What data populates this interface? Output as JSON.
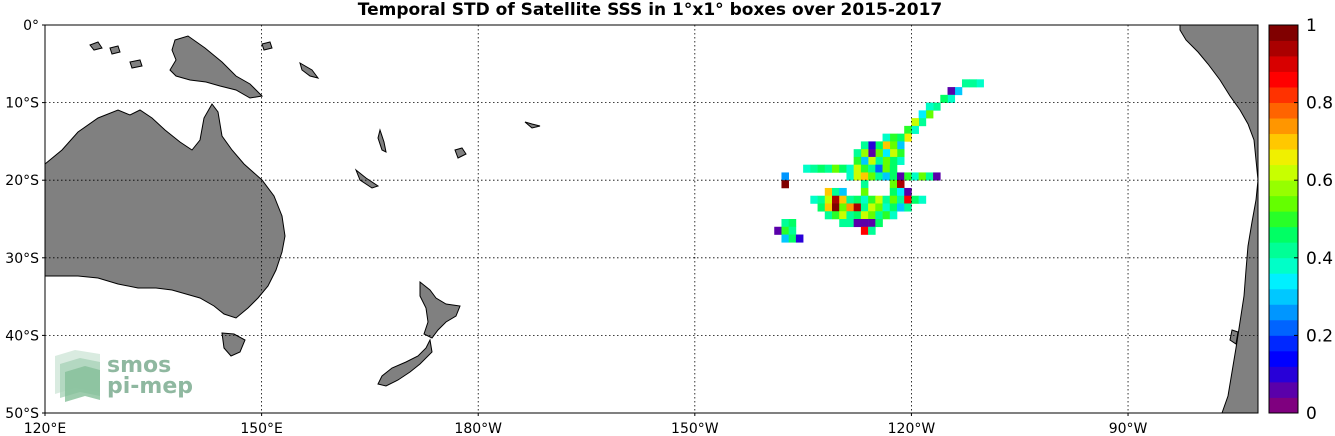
{
  "map": {
    "title": "Temporal STD of Satellite SSS in 1°x1° boxes over 2015-2017",
    "longitude_ticks": [
      {
        "lon": 120,
        "label": "120°E"
      },
      {
        "lon": 150,
        "label": "150°E"
      },
      {
        "lon": 180,
        "label": "180°W"
      },
      {
        "lon": 210,
        "label": "150°W"
      },
      {
        "lon": 240,
        "label": "120°W"
      },
      {
        "lon": 270,
        "label": "90°W"
      }
    ],
    "latitude_ticks": [
      {
        "lat": 0,
        "label": "0°"
      },
      {
        "lat": -10,
        "label": "10°S"
      },
      {
        "lat": -20,
        "label": "20°S"
      },
      {
        "lat": -30,
        "label": "30°S"
      },
      {
        "lat": -40,
        "label": "40°S"
      },
      {
        "lat": -50,
        "label": "50°S"
      }
    ],
    "extent": {
      "lon_min": 120,
      "lon_max": 288,
      "lat_min": -50,
      "lat_max": 0
    },
    "grid": true,
    "land_color": "#808080",
    "ocean_color": "#ffffff"
  },
  "colorbar": {
    "min": 0,
    "max": 1,
    "ticks": [
      {
        "value": 0,
        "label": "0"
      },
      {
        "value": 0.2,
        "label": "0.2"
      },
      {
        "value": 0.4,
        "label": "0.4"
      },
      {
        "value": 0.6,
        "label": "0.6"
      },
      {
        "value": 0.8,
        "label": "0.8"
      },
      {
        "value": 1,
        "label": "1"
      }
    ],
    "colors": [
      "#7f007f",
      "#5a00aa",
      "#2800d8",
      "#0000ff",
      "#0028ff",
      "#0064ff",
      "#0096ff",
      "#00c8ff",
      "#00f0ff",
      "#00ffc8",
      "#00ff96",
      "#00ff64",
      "#28ff28",
      "#64ff00",
      "#96ff00",
      "#c8ff00",
      "#f0f000",
      "#ffc800",
      "#ff9600",
      "#ff6400",
      "#ff3200",
      "#ff0000",
      "#d80000",
      "#aa0000",
      "#800000"
    ]
  },
  "logo": {
    "line1": "smos",
    "line2": "pi-mep"
  },
  "chart_data": {
    "type": "heatmap",
    "title": "Temporal STD of Satellite SSS in 1°x1° boxes over 2015-2017",
    "units": "",
    "cell_size_deg": 1,
    "cells": [
      {
        "lon": 249.5,
        "lat": -7.5,
        "v": 0.38
      },
      {
        "lon": 248.5,
        "lat": -7.5,
        "v": 0.42
      },
      {
        "lon": 247.5,
        "lat": -7.5,
        "v": 0.4
      },
      {
        "lon": 246.5,
        "lat": -8.5,
        "v": 0.3
      },
      {
        "lon": 245.5,
        "lat": -8.5,
        "v": 0.05
      },
      {
        "lon": 245.5,
        "lat": -9.5,
        "v": 0.36
      },
      {
        "lon": 244.5,
        "lat": -9.5,
        "v": 0.45
      },
      {
        "lon": 243.5,
        "lat": -10.5,
        "v": 0.4
      },
      {
        "lon": 242.5,
        "lat": -10.5,
        "v": 0.38
      },
      {
        "lon": 242.5,
        "lat": -11.5,
        "v": 0.55
      },
      {
        "lon": 241.5,
        "lat": -11.5,
        "v": 0.32
      },
      {
        "lon": 241.5,
        "lat": -12.5,
        "v": 0.42
      },
      {
        "lon": 240.5,
        "lat": -12.5,
        "v": 0.6
      },
      {
        "lon": 240.5,
        "lat": -13.5,
        "v": 0.38
      },
      {
        "lon": 239.5,
        "lat": -13.5,
        "v": 0.5
      },
      {
        "lon": 239.5,
        "lat": -14.5,
        "v": 0.65
      },
      {
        "lon": 238.5,
        "lat": -14.5,
        "v": 0.44
      },
      {
        "lon": 237.5,
        "lat": -14.5,
        "v": 0.5
      },
      {
        "lon": 236.5,
        "lat": -14.5,
        "v": 0.38
      },
      {
        "lon": 238.5,
        "lat": -15.5,
        "v": 0.3
      },
      {
        "lon": 237.5,
        "lat": -15.5,
        "v": 0.55
      },
      {
        "lon": 236.5,
        "lat": -15.5,
        "v": 0.7
      },
      {
        "lon": 235.5,
        "lat": -15.5,
        "v": 0.45
      },
      {
        "lon": 234.5,
        "lat": -15.5,
        "v": 0.1
      },
      {
        "lon": 233.5,
        "lat": -15.5,
        "v": 0.42
      },
      {
        "lon": 238.5,
        "lat": -16.5,
        "v": 0.48
      },
      {
        "lon": 237.5,
        "lat": -16.5,
        "v": 0.62
      },
      {
        "lon": 236.5,
        "lat": -16.5,
        "v": 0.35
      },
      {
        "lon": 235.5,
        "lat": -16.5,
        "v": 0.52
      },
      {
        "lon": 234.5,
        "lat": -16.5,
        "v": 0.05
      },
      {
        "lon": 233.5,
        "lat": -16.5,
        "v": 0.58
      },
      {
        "lon": 232.5,
        "lat": -16.5,
        "v": 0.4
      },
      {
        "lon": 238.5,
        "lat": -17.5,
        "v": 0.36
      },
      {
        "lon": 237.5,
        "lat": -17.5,
        "v": 0.46
      },
      {
        "lon": 236.5,
        "lat": -17.5,
        "v": 0.55
      },
      {
        "lon": 235.5,
        "lat": -17.5,
        "v": 0.4
      },
      {
        "lon": 234.5,
        "lat": -17.5,
        "v": 0.62
      },
      {
        "lon": 233.5,
        "lat": -17.5,
        "v": 0.3
      },
      {
        "lon": 232.5,
        "lat": -17.5,
        "v": 0.5
      },
      {
        "lon": 225.5,
        "lat": -18.5,
        "v": 0.38
      },
      {
        "lon": 226.5,
        "lat": -18.5,
        "v": 0.42
      },
      {
        "lon": 227.5,
        "lat": -18.5,
        "v": 0.46
      },
      {
        "lon": 228.5,
        "lat": -18.5,
        "v": 0.4
      },
      {
        "lon": 229.5,
        "lat": -18.5,
        "v": 0.55
      },
      {
        "lon": 230.5,
        "lat": -18.5,
        "v": 0.44
      },
      {
        "lon": 231.5,
        "lat": -18.5,
        "v": 0.36
      },
      {
        "lon": 232.5,
        "lat": -18.5,
        "v": 0.6
      },
      {
        "lon": 233.5,
        "lat": -18.5,
        "v": 0.48
      },
      {
        "lon": 234.5,
        "lat": -18.5,
        "v": 0.42
      },
      {
        "lon": 235.5,
        "lat": -18.5,
        "v": 0.2
      },
      {
        "lon": 236.5,
        "lat": -18.5,
        "v": 0.52
      },
      {
        "lon": 237.5,
        "lat": -18.5,
        "v": 0.45
      },
      {
        "lon": 222.5,
        "lat": -19.5,
        "v": 0.25
      },
      {
        "lon": 231.5,
        "lat": -19.5,
        "v": 0.38
      },
      {
        "lon": 232.5,
        "lat": -19.5,
        "v": 0.62
      },
      {
        "lon": 233.5,
        "lat": -19.5,
        "v": 0.7
      },
      {
        "lon": 234.5,
        "lat": -19.5,
        "v": 0.55
      },
      {
        "lon": 235.5,
        "lat": -19.5,
        "v": 0.4
      },
      {
        "lon": 236.5,
        "lat": -19.5,
        "v": 0.3
      },
      {
        "lon": 237.5,
        "lat": -19.5,
        "v": 0.45
      },
      {
        "lon": 238.5,
        "lat": -19.5,
        "v": 0.05
      },
      {
        "lon": 239.5,
        "lat": -19.5,
        "v": 0.5
      },
      {
        "lon": 240.5,
        "lat": -19.5,
        "v": 0.38
      },
      {
        "lon": 241.5,
        "lat": -19.5,
        "v": 0.55
      },
      {
        "lon": 242.5,
        "lat": -19.5,
        "v": 0.42
      },
      {
        "lon": 243.5,
        "lat": -19.5,
        "v": 0.05
      },
      {
        "lon": 222.5,
        "lat": -20.5,
        "v": 0.97
      },
      {
        "lon": 233.5,
        "lat": -20.5,
        "v": 0.4
      },
      {
        "lon": 237.5,
        "lat": -20.5,
        "v": 0.52
      },
      {
        "lon": 238.5,
        "lat": -20.5,
        "v": 0.92
      },
      {
        "lon": 237.5,
        "lat": -21.5,
        "v": 0.45
      },
      {
        "lon": 238.5,
        "lat": -21.5,
        "v": 0.35
      },
      {
        "lon": 239.5,
        "lat": -21.5,
        "v": 0.05
      },
      {
        "lon": 228.5,
        "lat": -21.5,
        "v": 0.7
      },
      {
        "lon": 229.5,
        "lat": -21.5,
        "v": 0.4
      },
      {
        "lon": 230.5,
        "lat": -21.5,
        "v": 0.3
      },
      {
        "lon": 233.5,
        "lat": -21.5,
        "v": 0.55
      },
      {
        "lon": 226.5,
        "lat": -22.5,
        "v": 0.38
      },
      {
        "lon": 227.5,
        "lat": -22.5,
        "v": 0.42
      },
      {
        "lon": 228.5,
        "lat": -22.5,
        "v": 0.62
      },
      {
        "lon": 229.5,
        "lat": -22.5,
        "v": 0.95
      },
      {
        "lon": 230.5,
        "lat": -22.5,
        "v": 0.68
      },
      {
        "lon": 231.5,
        "lat": -22.5,
        "v": 0.4
      },
      {
        "lon": 232.5,
        "lat": -22.5,
        "v": 0.45
      },
      {
        "lon": 233.5,
        "lat": -22.5,
        "v": 0.38
      },
      {
        "lon": 234.5,
        "lat": -22.5,
        "v": 0.5
      },
      {
        "lon": 235.5,
        "lat": -22.5,
        "v": 0.6
      },
      {
        "lon": 236.5,
        "lat": -22.5,
        "v": 0.42
      },
      {
        "lon": 237.5,
        "lat": -22.5,
        "v": 0.55
      },
      {
        "lon": 238.5,
        "lat": -22.5,
        "v": 0.4
      },
      {
        "lon": 239.5,
        "lat": -22.5,
        "v": 0.85
      },
      {
        "lon": 240.5,
        "lat": -22.5,
        "v": 0.44
      },
      {
        "lon": 241.5,
        "lat": -22.5,
        "v": 0.36
      },
      {
        "lon": 227.5,
        "lat": -23.5,
        "v": 0.45
      },
      {
        "lon": 228.5,
        "lat": -23.5,
        "v": 0.68
      },
      {
        "lon": 229.5,
        "lat": -23.5,
        "v": 0.98
      },
      {
        "lon": 230.5,
        "lat": -23.5,
        "v": 0.55
      },
      {
        "lon": 231.5,
        "lat": -23.5,
        "v": 0.75
      },
      {
        "lon": 232.5,
        "lat": -23.5,
        "v": 0.92
      },
      {
        "lon": 233.5,
        "lat": -23.5,
        "v": 0.42
      },
      {
        "lon": 234.5,
        "lat": -23.5,
        "v": 0.6
      },
      {
        "lon": 235.5,
        "lat": -23.5,
        "v": 0.52
      },
      {
        "lon": 236.5,
        "lat": -23.5,
        "v": 0.38
      },
      {
        "lon": 237.5,
        "lat": -23.5,
        "v": 0.45
      },
      {
        "lon": 238.5,
        "lat": -23.5,
        "v": 0.3
      },
      {
        "lon": 239.5,
        "lat": -23.5,
        "v": 0.4
      },
      {
        "lon": 228.5,
        "lat": -24.5,
        "v": 0.4
      },
      {
        "lon": 229.5,
        "lat": -24.5,
        "v": 0.48
      },
      {
        "lon": 230.5,
        "lat": -24.5,
        "v": 0.62
      },
      {
        "lon": 231.5,
        "lat": -24.5,
        "v": 0.4
      },
      {
        "lon": 232.5,
        "lat": -24.5,
        "v": 0.45
      },
      {
        "lon": 233.5,
        "lat": -24.5,
        "v": 0.6
      },
      {
        "lon": 234.5,
        "lat": -24.5,
        "v": 0.55
      },
      {
        "lon": 235.5,
        "lat": -24.5,
        "v": 0.42
      },
      {
        "lon": 236.5,
        "lat": -24.5,
        "v": 0.5
      },
      {
        "lon": 237.5,
        "lat": -24.5,
        "v": 0.38
      },
      {
        "lon": 230.5,
        "lat": -25.5,
        "v": 0.4
      },
      {
        "lon": 231.5,
        "lat": -25.5,
        "v": 0.42
      },
      {
        "lon": 232.5,
        "lat": -25.5,
        "v": 0.05
      },
      {
        "lon": 233.5,
        "lat": -25.5,
        "v": 0.05
      },
      {
        "lon": 234.5,
        "lat": -25.5,
        "v": 0.05
      },
      {
        "lon": 235.5,
        "lat": -25.5,
        "v": 0.44
      },
      {
        "lon": 222.5,
        "lat": -25.5,
        "v": 0.4
      },
      {
        "lon": 223.5,
        "lat": -25.5,
        "v": 0.45
      },
      {
        "lon": 221.5,
        "lat": -26.5,
        "v": 0.05
      },
      {
        "lon": 222.5,
        "lat": -26.5,
        "v": 0.48
      },
      {
        "lon": 223.5,
        "lat": -26.5,
        "v": 0.42
      },
      {
        "lon": 233.5,
        "lat": -26.5,
        "v": 0.85
      },
      {
        "lon": 234.5,
        "lat": -26.5,
        "v": 0.4
      },
      {
        "lon": 222.5,
        "lat": -27.5,
        "v": 0.3
      },
      {
        "lon": 223.5,
        "lat": -27.5,
        "v": 0.45
      },
      {
        "lon": 224.5,
        "lat": -27.5,
        "v": 0.1
      }
    ]
  }
}
